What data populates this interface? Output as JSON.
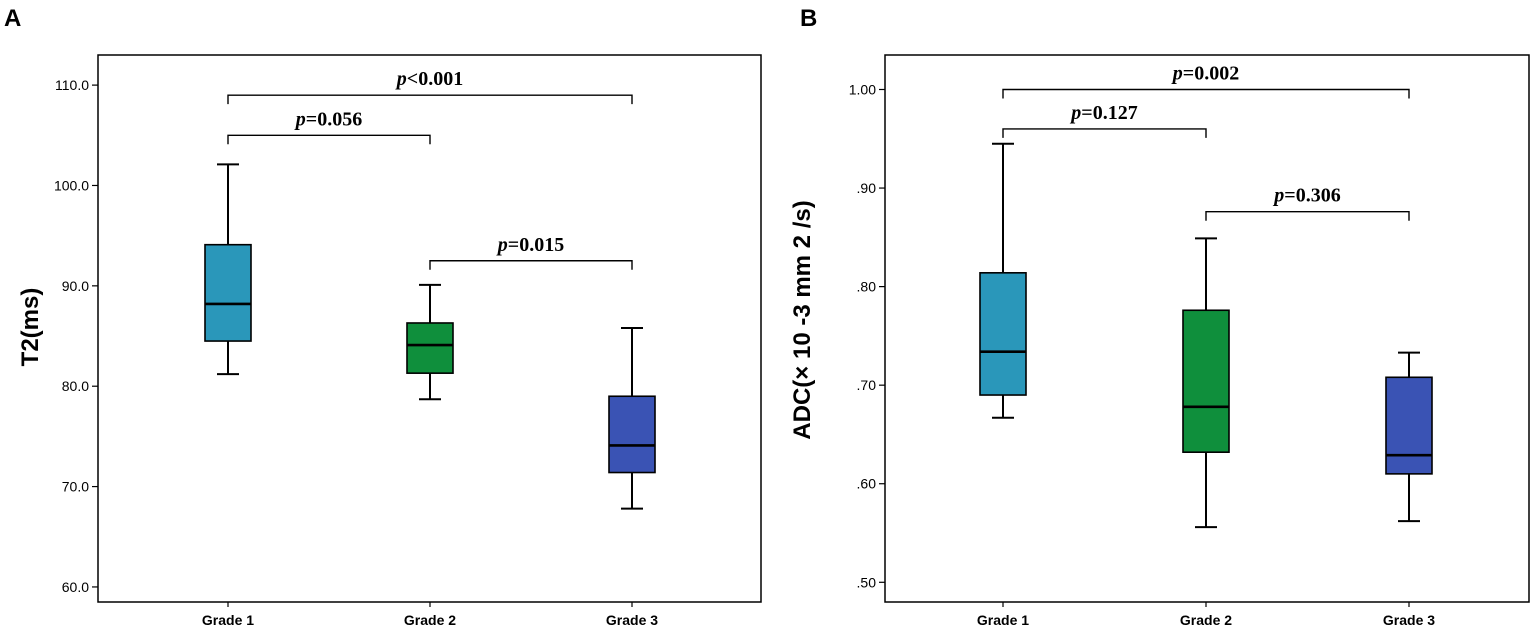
{
  "chart_data": [
    {
      "type": "box",
      "panel_label": "A",
      "ylabel": "T2(ms)",
      "ylim": [
        58.5,
        113.0
      ],
      "yticks": [
        60.0,
        70.0,
        80.0,
        90.0,
        100.0,
        110.0
      ],
      "ytick_labels": [
        "60.0",
        "70.0",
        "80.0",
        "90.0",
        "100.0",
        "110.0"
      ],
      "categories": [
        "Grade 1",
        "Grade 2",
        "Grade 3"
      ],
      "boxes": [
        {
          "min": 81.2,
          "q1": 84.5,
          "median": 88.2,
          "q3": 94.1,
          "max": 102.1,
          "color": "#2a97ba"
        },
        {
          "min": 78.7,
          "q1": 81.3,
          "median": 84.1,
          "q3": 86.3,
          "max": 90.1,
          "color": "#0f8f3c"
        },
        {
          "min": 67.8,
          "q1": 71.4,
          "median": 74.1,
          "q3": 79.0,
          "max": 85.8,
          "color": "#3a53b4"
        }
      ],
      "comparisons": [
        {
          "from": 0,
          "to": 2,
          "y": 109.0,
          "prefix": "p",
          "text": "<0.001"
        },
        {
          "from": 0,
          "to": 1,
          "y": 105.0,
          "prefix": "p",
          "text": "=0.056"
        },
        {
          "from": 1,
          "to": 2,
          "y": 92.5,
          "prefix": "p",
          "text": "=0.015"
        }
      ]
    },
    {
      "type": "box",
      "panel_label": "B",
      "ylabel": "ADC(× 10 -3 mm 2 /s)",
      "ylim": [
        0.48,
        1.035
      ],
      "yticks": [
        0.5,
        0.6,
        0.7,
        0.8,
        0.9,
        1.0
      ],
      "ytick_labels": [
        ".50",
        ".60",
        ".70",
        ".80",
        ".90",
        "1.00"
      ],
      "categories": [
        "Grade 1",
        "Grade 2",
        "Grade 3"
      ],
      "boxes": [
        {
          "min": 0.667,
          "q1": 0.69,
          "median": 0.734,
          "q3": 0.814,
          "max": 0.945,
          "color": "#2a97ba"
        },
        {
          "min": 0.556,
          "q1": 0.632,
          "median": 0.678,
          "q3": 0.776,
          "max": 0.849,
          "color": "#0f8f3c"
        },
        {
          "min": 0.562,
          "q1": 0.61,
          "median": 0.629,
          "q3": 0.708,
          "max": 0.733,
          "color": "#3a53b4"
        }
      ],
      "comparisons": [
        {
          "from": 0,
          "to": 2,
          "y": 1.0,
          "prefix": "p",
          "text": "=0.002"
        },
        {
          "from": 0,
          "to": 1,
          "y": 0.96,
          "prefix": "p",
          "text": "=0.127"
        },
        {
          "from": 1,
          "to": 2,
          "y": 0.876,
          "prefix": "p",
          "text": "=0.306"
        }
      ]
    }
  ]
}
